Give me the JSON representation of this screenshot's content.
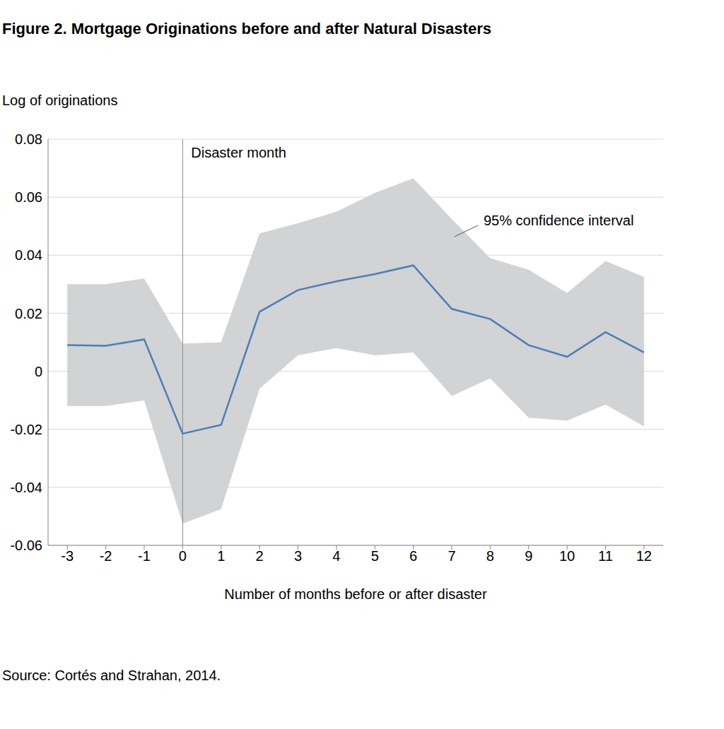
{
  "chart_data": {
    "type": "line",
    "title": "Figure 2. Mortgage Originations before and after Natural Disasters",
    "y_label": "Log of originations",
    "x_label": "Number of months before or after disaster",
    "source": "Source: Cortés and Strahan, 2014.",
    "x": [
      -3,
      -2,
      -1,
      0,
      1,
      2,
      3,
      4,
      5,
      6,
      7,
      8,
      9,
      10,
      11,
      12
    ],
    "values": [
      0.009,
      0.0088,
      0.011,
      -0.0215,
      -0.0185,
      0.0205,
      0.028,
      0.031,
      0.0335,
      0.0365,
      0.0215,
      0.018,
      0.009,
      0.005,
      0.0135,
      0.0065
    ],
    "color": "#4a7ebb",
    "confidence_interval": {
      "label": "95% confidence interval",
      "color": "#d1d3d4",
      "lower": [
        -0.012,
        -0.012,
        -0.01,
        -0.0525,
        -0.0475,
        -0.006,
        0.0055,
        0.008,
        0.0055,
        0.0065,
        -0.0085,
        -0.0025,
        -0.016,
        -0.017,
        -0.0115,
        -0.019
      ],
      "upper": [
        0.03,
        0.03,
        0.032,
        0.0095,
        0.01,
        0.0475,
        0.051,
        0.055,
        0.0615,
        0.0665,
        0.0525,
        0.039,
        0.035,
        0.027,
        0.038,
        0.0325
      ]
    },
    "reference_line": {
      "x": 0,
      "label": "Disaster month"
    },
    "xlim": [
      -3.5,
      12.5
    ],
    "xticks": [
      -3,
      -2,
      -1,
      0,
      1,
      2,
      3,
      4,
      5,
      6,
      7,
      8,
      9,
      10,
      11,
      12
    ],
    "ylim": [
      -0.06,
      0.08
    ],
    "yticks": [
      -0.06,
      -0.04,
      -0.02,
      0,
      0.02,
      0.04,
      0.06,
      0.08
    ],
    "grid": true
  }
}
